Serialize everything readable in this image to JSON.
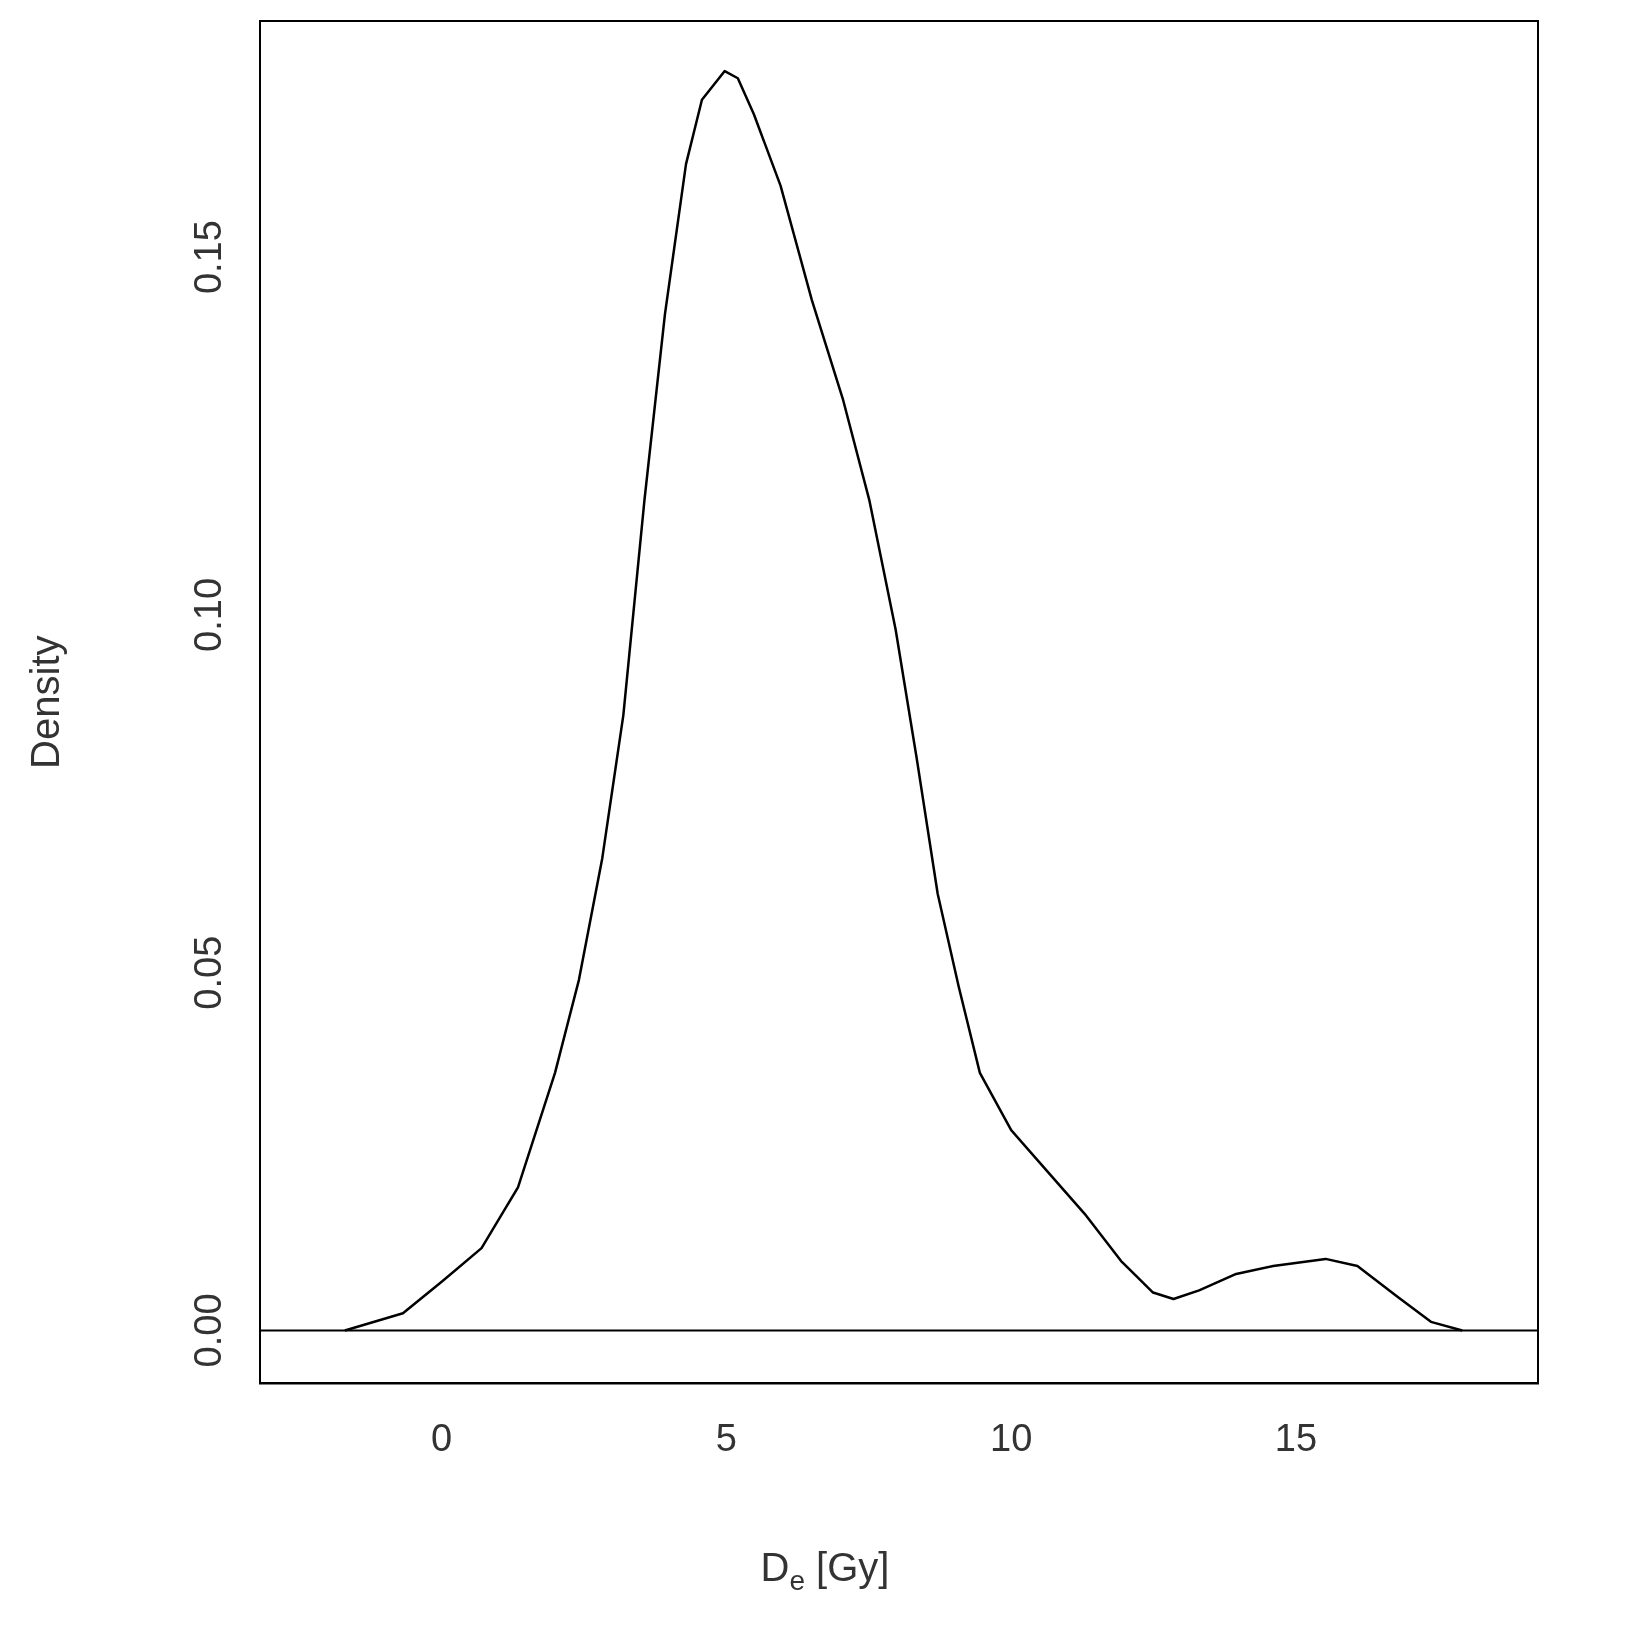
{
  "chart_data": {
    "type": "line",
    "xlabel": "D$_{e}$ [Gy]",
    "ylabel": "Density",
    "xlim": [
      -3.19,
      19.25
    ],
    "ylim": [
      -0.0074,
      0.183
    ],
    "xticks": [
      0,
      5,
      10,
      15
    ],
    "yticks": [
      {
        "value": 0,
        "label": "0.00"
      },
      0.05,
      {
        "value": 0.1,
        "label": "0.10"
      },
      0.15
    ],
    "grid": false,
    "legend": false,
    "marker": "none",
    "line_style": "solid",
    "ref_lines": [
      {
        "axis": "y",
        "value": 0,
        "color": "#000000"
      }
    ],
    "series": [
      {
        "color": "#000000",
        "x": [
          -1.7,
          -0.68,
          0,
          0.7,
          1.34,
          1.99,
          2.41,
          2.82,
          3.19,
          3.56,
          3.92,
          4.29,
          4.57,
          4.97,
          5.2,
          5.48,
          5.95,
          6.5,
          7.05,
          7.51,
          7.97,
          8.34,
          8.71,
          9.08,
          9.45,
          10.0,
          10.55,
          11.29,
          11.93,
          12.49,
          12.85,
          13.3,
          13.95,
          14.6,
          15.52,
          16.08,
          16.8,
          17.37,
          17.92
        ],
        "values": [
          0,
          0.0024,
          0.0068,
          0.0115,
          0.02,
          0.036,
          0.049,
          0.066,
          0.086,
          0.116,
          0.142,
          0.163,
          0.172,
          0.176,
          0.175,
          0.17,
          0.16,
          0.144,
          0.13,
          0.116,
          0.098,
          0.08,
          0.061,
          0.048,
          0.036,
          0.028,
          0.023,
          0.0163,
          0.0097,
          0.0053,
          0.0044,
          0.0056,
          0.0079,
          0.009,
          0.01,
          0.009,
          0.0046,
          0.0012,
          0
        ]
      }
    ]
  }
}
